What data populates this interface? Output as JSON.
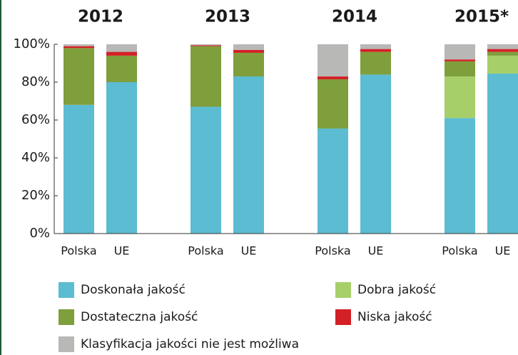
{
  "chart_data": {
    "type": "stacked_bar",
    "groups": [
      "2012",
      "2013",
      "2014",
      "2015*"
    ],
    "categories": [
      "Polska",
      "UE",
      "Polska",
      "UE",
      "Polska",
      "UE",
      "Polska",
      "UE"
    ],
    "series": [
      {
        "name": "Doskonała jakość",
        "color": "#5bbcd2",
        "values": [
          68,
          80,
          67,
          83,
          55.5,
          84,
          61,
          84.5
        ]
      },
      {
        "name": "Dobra jakość",
        "color": "#a6cf6a",
        "values": [
          0,
          0,
          0,
          0,
          0,
          0,
          22,
          9.5
        ]
      },
      {
        "name": "Dostateczna jakość",
        "color": "#7f9e3c",
        "values": [
          30,
          14,
          32,
          12.5,
          26,
          12,
          8,
          2
        ]
      },
      {
        "name": "Niska jakość",
        "color": "#d32027",
        "values": [
          1,
          2,
          0.5,
          1.5,
          1.5,
          1.5,
          1,
          1.5
        ]
      },
      {
        "name": "Klasyfikacja jakości nie jest możliwa",
        "color": "#b8b8b6",
        "values": [
          1,
          4,
          0.5,
          3,
          17,
          2.5,
          8,
          2.5
        ]
      }
    ],
    "ylim": [
      0,
      100
    ],
    "yticks": [
      {
        "value": 0,
        "label": "0%"
      },
      {
        "value": 20,
        "label": "20%"
      },
      {
        "value": 40,
        "label": "40%"
      },
      {
        "value": 60,
        "label": "60%"
      },
      {
        "value": 80,
        "label": "80%"
      },
      {
        "value": 100,
        "label": "100%"
      }
    ]
  }
}
